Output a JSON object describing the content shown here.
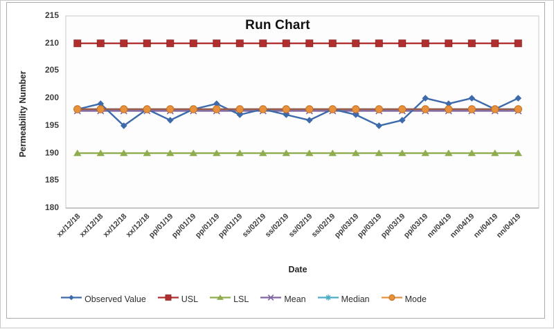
{
  "window": {
    "background": "#ffffff",
    "frame_border": "#ababab"
  },
  "chart_data": {
    "type": "line",
    "title": "Run Chart",
    "xlabel": "Date",
    "ylabel": "Permeability Number",
    "ylim": [
      180,
      215
    ],
    "y_ticks": [
      215,
      210,
      205,
      200,
      195,
      190,
      185,
      180
    ],
    "grid": false,
    "legend_position": "bottom",
    "categories": [
      "xx/12/18",
      "xx/12/18",
      "xx/12/18",
      "xx/12/18",
      "pp/01/19",
      "pp/01/19",
      "pp/01/19",
      "pp/01/19",
      "ss/02/19",
      "ss/02/19",
      "ss/02/19",
      "ss/02/19",
      "pp/03/19",
      "pp/03/19",
      "pp/03/19",
      "pp/03/19",
      "nn/04/19",
      "nn/04/19",
      "nn/04/19",
      "nn/04/19"
    ],
    "series": [
      {
        "name": "Observed Value",
        "marker": "diamond",
        "color": "#3D6AAB",
        "values": [
          198,
          199,
          195,
          198,
          196,
          198,
          199,
          197,
          198,
          197,
          196,
          198,
          197,
          195,
          196,
          200,
          199,
          200,
          198,
          200
        ]
      },
      {
        "name": "USL",
        "marker": "square",
        "color": "#B02E2E",
        "values": [
          210,
          210,
          210,
          210,
          210,
          210,
          210,
          210,
          210,
          210,
          210,
          210,
          210,
          210,
          210,
          210,
          210,
          210,
          210,
          210
        ]
      },
      {
        "name": "LSL",
        "marker": "triangle",
        "color": "#8FAD4E",
        "values": [
          190,
          190,
          190,
          190,
          190,
          190,
          190,
          190,
          190,
          190,
          190,
          190,
          190,
          190,
          190,
          190,
          190,
          190,
          190,
          190
        ]
      },
      {
        "name": "Mean",
        "marker": "x",
        "color": "#8064A2",
        "values": [
          197.7,
          197.7,
          197.7,
          197.7,
          197.7,
          197.7,
          197.7,
          197.7,
          197.7,
          197.7,
          197.7,
          197.7,
          197.7,
          197.7,
          197.7,
          197.7,
          197.7,
          197.7,
          197.7,
          197.7
        ]
      },
      {
        "name": "Median",
        "marker": "asterisk",
        "color": "#4BACC6",
        "values": [
          198,
          198,
          198,
          198,
          198,
          198,
          198,
          198,
          198,
          198,
          198,
          198,
          198,
          198,
          198,
          198,
          198,
          198,
          198,
          198
        ]
      },
      {
        "name": "Mode",
        "marker": "circle",
        "color": "#E8913D",
        "line_color": "#9B5B48",
        "marker_stroke": "#C06F24",
        "values": [
          198,
          198,
          198,
          198,
          198,
          198,
          198,
          198,
          198,
          198,
          198,
          198,
          198,
          198,
          198,
          198,
          198,
          198,
          198,
          198
        ]
      }
    ]
  }
}
